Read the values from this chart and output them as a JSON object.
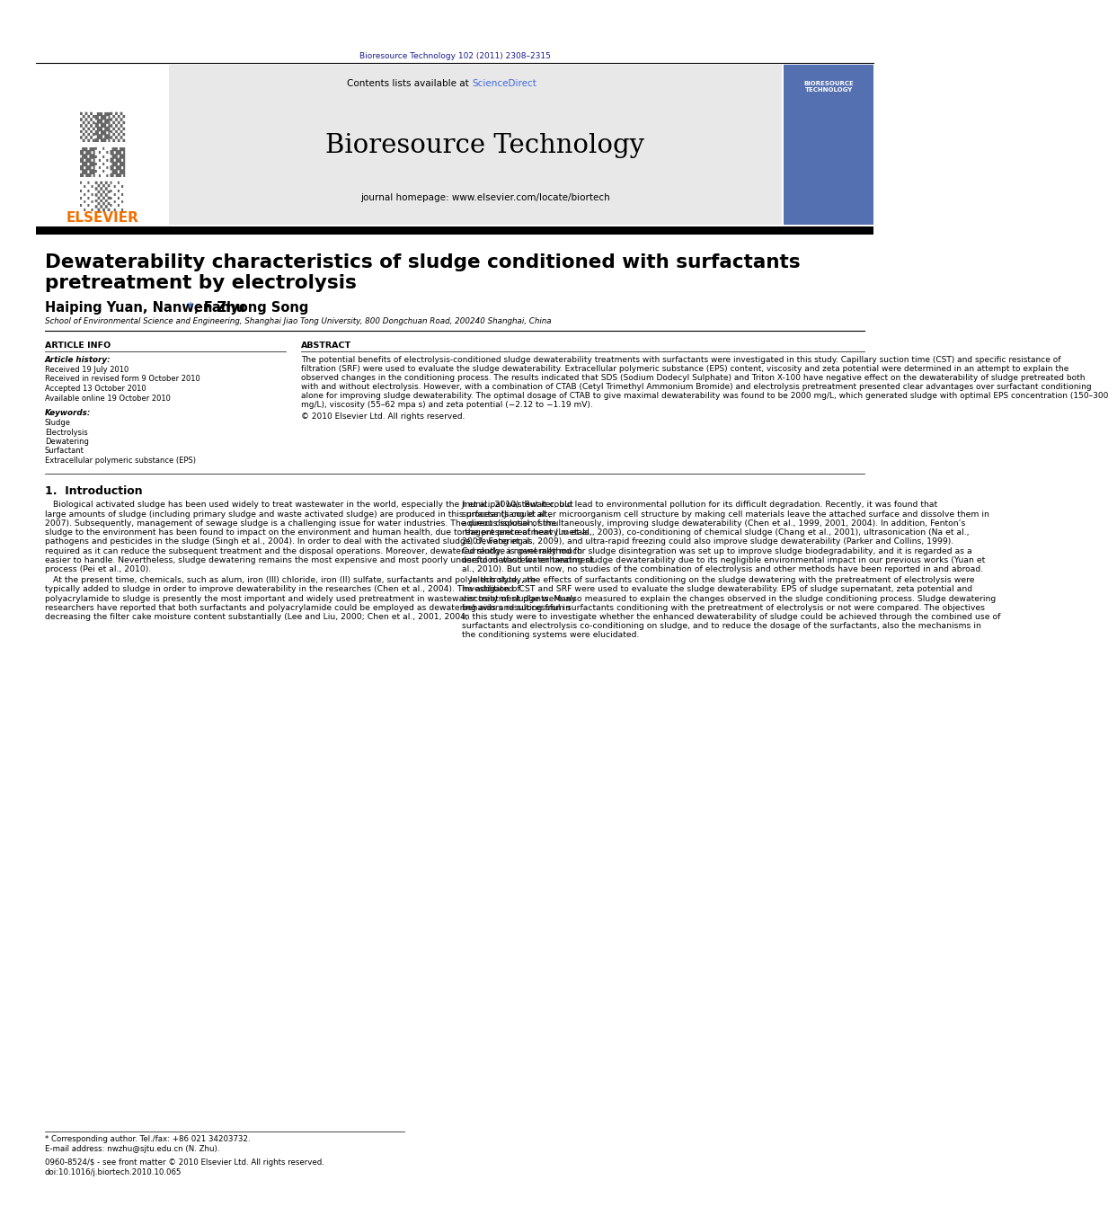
{
  "page_bg": "#ffffff",
  "top_journal_ref": "Bioresource Technology 102 (2011) 2308–2315",
  "top_journal_ref_color": "#1a1a8c",
  "header_bg": "#e8e8e8",
  "header_journal_name": "Bioresource Technology",
  "header_contents": "Contents lists available at ",
  "header_sciencedirect": "ScienceDirect",
  "header_sciencedirect_color": "#4169e1",
  "header_homepage": "journal homepage: www.elsevier.com/locate/biortech",
  "elsevier_color": "#f07000",
  "article_title_line1": "Dewaterability characteristics of sludge conditioned with surfactants",
  "article_title_line2": "pretreatment by electrolysis",
  "authors_pre": "Haiping Yuan, Nanwen Zhu ",
  "authors_star": "*",
  "authors_post": ", Fanyong Song",
  "affiliation": "School of Environmental Science and Engineering, Shanghai Jiao Tong University, 800 Dongchuan Road, 200240 Shanghai, China",
  "section_article_info": "ARTICLE INFO",
  "section_abstract": "ABSTRACT",
  "article_history_title": "Article history:",
  "article_history": [
    "Received 19 July 2010",
    "Received in revised form 9 October 2010",
    "Accepted 13 October 2010",
    "Available online 19 October 2010"
  ],
  "keywords_title": "Keywords:",
  "keywords": [
    "Sludge",
    "Electrolysis",
    "Dewatering",
    "Surfactant",
    "Extracellular polymeric substance (EPS)"
  ],
  "abstract_text": "The potential benefits of electrolysis-conditioned sludge dewaterability treatments with surfactants were investigated in this study. Capillary suction time (CST) and specific resistance of filtration (SRF) were used to evaluate the sludge dewaterability. Extracellular polymeric substance (EPS) content, viscosity and zeta potential were determined in an attempt to explain the observed changes in the conditioning process. The results indicated that SDS (Sodium Dodecyl Sulphate) and Triton X-100 have negative effect on the dewaterability of sludge pretreated both with and without electrolysis. However, with a combination of CTAB (Cetyl Trimethyl Ammonium Bromide) and electrolysis pretreatment presented clear advantages over surfactant conditioning alone for improving sludge dewaterability. The optimal dosage of CTAB to give maximal dewaterability was found to be 2000 mg/L, which generated sludge with optimal EPS concentration (150–300 mg/L), viscosity (55–62 mpa s) and zeta potential (−2.12 to −1.19 mV).\n© 2010 Elsevier Ltd. All rights reserved.",
  "intro_title": "1.  Introduction",
  "intro_col1": "   Biological activated sludge has been used widely to treat wastewater in the world, especially the municipal wastewater, but large amounts of sludge (including primary sludge and waste activated sludge) are produced in this process (Jiang et al., 2007). Subsequently, management of sewage sludge is a challenging issue for water industries. The direct disposal of the sludge to the environment has been found to impact on the environment and human health, due to the presence of heavy metals, pathogens and pesticides in the sludge (Singh et al., 2004). In order to deal with the activated sludge, dewatering is required as it can reduce the subsequent treatment and the disposal operations. Moreover, dewatered sludge is generally much easier to handle. Nevertheless, sludge dewatering remains the most expensive and most poorly understood wastewater treatment process (Pei et al., 2010).\n   At the present time, chemicals, such as alum, iron (III) chloride, iron (II) sulfate, surfactants and polyelectrolyte, are typically added to sludge in order to improve dewaterability in the researches (Chen et al., 2004). The addition of polyacrylamide to sludge is presently the most important and widely used pretreatment in wastewater treatment plants. Many researchers have reported that both surfactants and polyacrylamide could be employed as dewatering aids and successful in decreasing the filter cake moisture content substantially (Lee and Liu, 2000; Chen et al., 2001, 2004;",
  "intro_col2": "Ji et al., 2010). But it could lead to environmental pollution for its difficult degradation. Recently, it was found that surfactants could alter microorganism cell structure by making cell materials leave the attached surface and dissolve them in aqueous solution, simultaneously, improving sludge dewaterability (Chen et al., 1999, 2001, 2004). In addition, Fenton’s reagent pretreatment (Lu et al., 2003), co-conditioning of chemical sludge (Chang et al., 2001), ultrasonication (Na et al., 2007; Feng et al., 2009), and ultra-rapid freezing could also improve sludge dewaterability (Parker and Collins, 1999). Currently, a novel method for sludge disintegration was set up to improve sludge biodegradability, and it is regarded as a useful method for enhancing sludge dewaterability due to its negligible environmental impact in our previous works (Yuan et al., 2010). But until now, no studies of the combination of electrolysis and other methods have been reported in and abroad.\n   In this study, the effects of surfactants conditioning on the sludge dewatering with the pretreatment of electrolysis were investigated. CST and SRF were used to evaluate the sludge dewaterability. EPS of sludge supernatant, zeta potential and viscosity of sludge were also measured to explain the changes observed in the sludge conditioning process. Sludge dewatering behaviors resulting from surfactants conditioning with the pretreatment of electrolysis or not were compared. The objectives in this study were to investigate whether the enhanced dewaterability of sludge could be achieved through the combined use of surfactants and electrolysis co-conditioning on sludge, and to reduce the dosage of the surfactants, also the mechanisms in the conditioning systems were elucidated.",
  "footer_note": "* Corresponding author. Tel./fax: +86 021 34203732.",
  "footer_email": "E-mail address: nwzhu@sjtu.edu.cn (N. Zhu).",
  "footer_issn": "0960-8524/$ - see front matter © 2010 Elsevier Ltd. All rights reserved.",
  "footer_doi": "doi:10.1016/j.biortech.2010.10.065"
}
